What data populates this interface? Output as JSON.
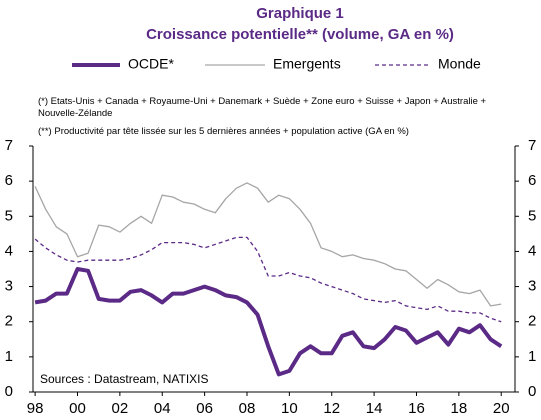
{
  "chart_data": {
    "type": "line",
    "title": "Graphique 1",
    "subtitle": "Croissance potentielle** (volume, GA en %)",
    "notes": [
      "(*) Etats-Unis + Canada + Royaume-Uni + Danemark + Suède + Zone euro + Suisse + Japon + Australie + Nouvelle-Zélande",
      "(**) Productivité par tête lissée sur les 5 dernières années + population active (GA en %)"
    ],
    "source": "Sources : Datastream, NATIXIS",
    "x": [
      1998,
      1998.5,
      1999,
      1999.5,
      2000,
      2000.5,
      2001,
      2001.5,
      2002,
      2002.5,
      2003,
      2003.5,
      2004,
      2004.5,
      2005,
      2005.5,
      2006,
      2006.5,
      2007,
      2007.5,
      2008,
      2008.5,
      2009,
      2009.5,
      2010,
      2010.5,
      2011,
      2011.5,
      2012,
      2012.5,
      2013,
      2013.5,
      2014,
      2014.5,
      2015,
      2015.5,
      2016,
      2016.5,
      2017,
      2017.5,
      2018,
      2018.5,
      2019,
      2019.5,
      2020
    ],
    "series": [
      {
        "name": "OCDE*",
        "color": "#5b2a86",
        "width": 4,
        "dash": false,
        "values": [
          2.55,
          2.6,
          2.8,
          2.8,
          3.5,
          3.45,
          2.65,
          2.6,
          2.6,
          2.85,
          2.9,
          2.75,
          2.55,
          2.8,
          2.8,
          2.9,
          3.0,
          2.9,
          2.75,
          2.7,
          2.55,
          2.2,
          1.3,
          0.5,
          0.6,
          1.1,
          1.3,
          1.1,
          1.1,
          1.6,
          1.7,
          1.3,
          1.25,
          1.5,
          1.85,
          1.75,
          1.4,
          1.55,
          1.7,
          1.35,
          1.8,
          1.7,
          1.9,
          1.5,
          1.3
        ]
      },
      {
        "name": "Emergents",
        "color": "#a6a6a6",
        "width": 1.3,
        "dash": false,
        "values": [
          5.85,
          5.2,
          4.7,
          4.5,
          3.85,
          3.95,
          4.75,
          4.7,
          4.55,
          4.8,
          5.0,
          4.8,
          5.6,
          5.55,
          5.4,
          5.35,
          5.2,
          5.1,
          5.5,
          5.8,
          5.95,
          5.8,
          5.4,
          5.6,
          5.5,
          5.2,
          4.8,
          4.1,
          4.0,
          3.85,
          3.9,
          3.8,
          3.75,
          3.65,
          3.5,
          3.45,
          3.2,
          2.95,
          3.2,
          3.05,
          2.85,
          2.8,
          2.9,
          2.45,
          2.5
        ]
      },
      {
        "name": "Monde",
        "color": "#5b2a86",
        "width": 1.3,
        "dash": true,
        "values": [
          4.35,
          4.1,
          3.9,
          3.75,
          3.7,
          3.75,
          3.75,
          3.75,
          3.75,
          3.8,
          3.9,
          4.05,
          4.25,
          4.25,
          4.25,
          4.2,
          4.1,
          4.2,
          4.3,
          4.4,
          4.4,
          4.0,
          3.3,
          3.3,
          3.4,
          3.3,
          3.25,
          3.1,
          3.0,
          2.9,
          2.8,
          2.65,
          2.6,
          2.55,
          2.6,
          2.45,
          2.4,
          2.35,
          2.45,
          2.3,
          2.3,
          2.25,
          2.25,
          2.1,
          2.0
        ]
      }
    ],
    "xlim": [
      1997.9,
      2020.65
    ],
    "xticks": [
      {
        "value": 1998,
        "label": "98"
      },
      {
        "value": 2000,
        "label": "00"
      },
      {
        "value": 2002,
        "label": "02"
      },
      {
        "value": 2004,
        "label": "04"
      },
      {
        "value": 2006,
        "label": "06"
      },
      {
        "value": 2008,
        "label": "08"
      },
      {
        "value": 2010,
        "label": "10"
      },
      {
        "value": 2012,
        "label": "12"
      },
      {
        "value": 2014,
        "label": "14"
      },
      {
        "value": 2016,
        "label": "16"
      },
      {
        "value": 2018,
        "label": "18"
      },
      {
        "value": 2020,
        "label": "20"
      }
    ],
    "ylim": [
      0,
      7
    ],
    "yticks": [
      0,
      1,
      2,
      3,
      4,
      5,
      6,
      7
    ],
    "y2lim": [
      0,
      7
    ],
    "y2ticks": [
      0,
      1,
      2,
      3,
      4,
      5,
      6,
      7
    ],
    "grid": false,
    "legend": "top"
  }
}
